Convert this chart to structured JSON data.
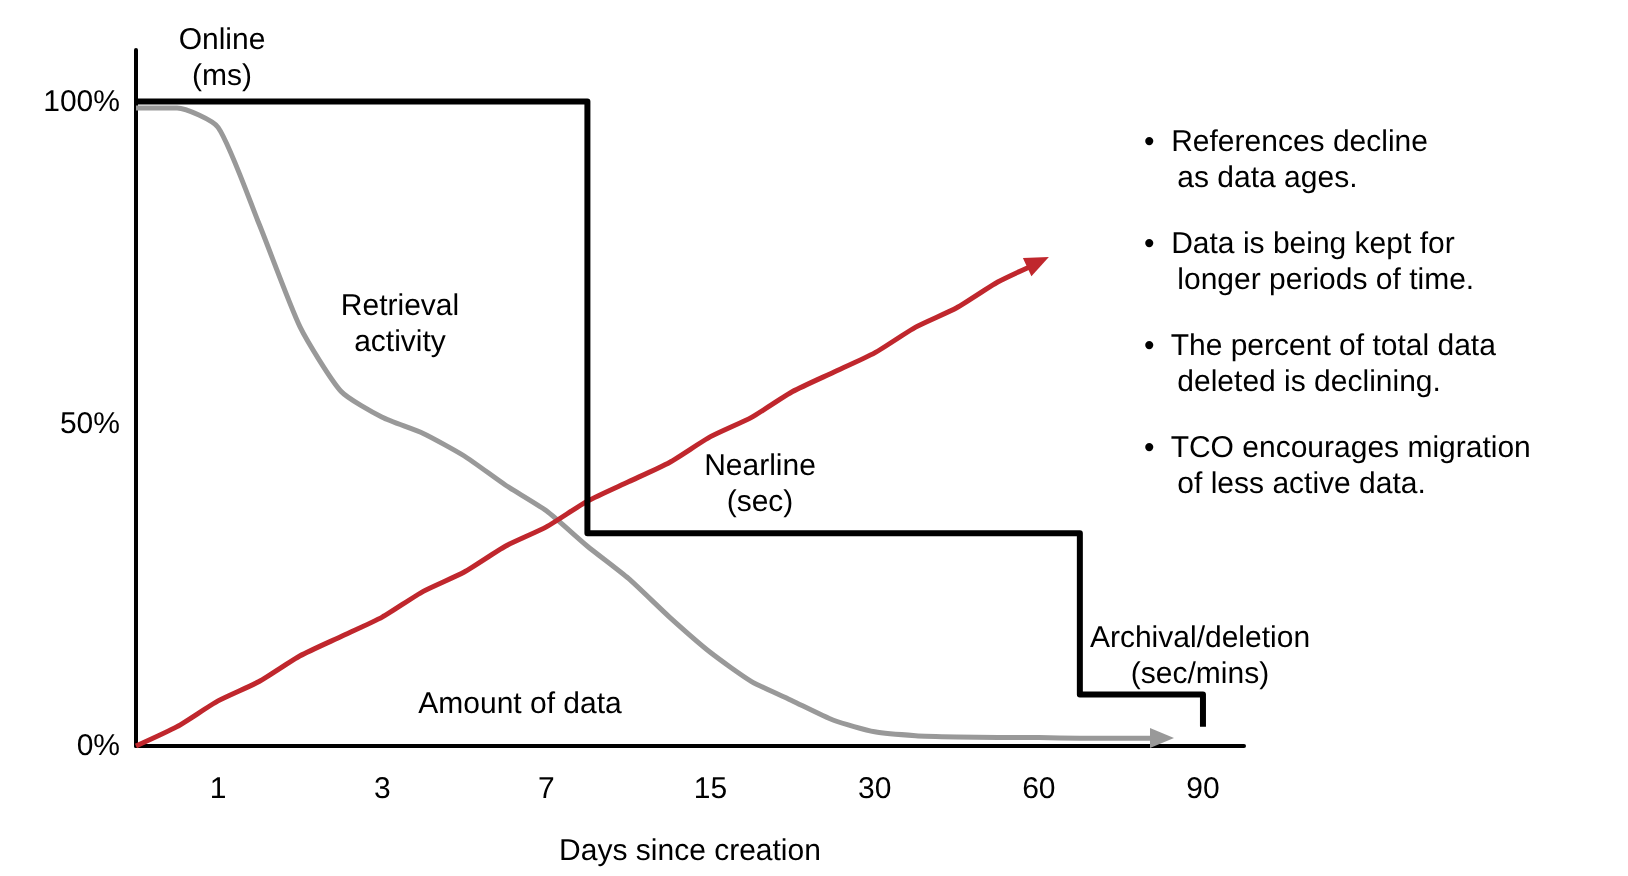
{
  "chart_data": {
    "type": "line",
    "xlabel": "Days since creation",
    "categories": [
      null,
      null,
      "1",
      null,
      null,
      null,
      "3",
      null,
      null,
      null,
      "7",
      null,
      null,
      null,
      "15",
      null,
      null,
      null,
      "30",
      null,
      null,
      null,
      "60",
      null,
      null,
      null,
      "90",
      null
    ],
    "ylim": [
      0,
      108
    ],
    "yticks": [
      {
        "value": 0,
        "label": "0%"
      },
      {
        "value": 50,
        "label": "50%"
      },
      {
        "value": 100,
        "label": "100%"
      }
    ],
    "grid": false,
    "marker": "none",
    "line_style": "solid",
    "series": [
      {
        "color": "#999999",
        "values": [
          99,
          99,
          96,
          81,
          65,
          55,
          51,
          48.5,
          45,
          40.5,
          36.5,
          31,
          26,
          20,
          14.5,
          10,
          7,
          4,
          2.2,
          1.6,
          1.4,
          1.3,
          1.3,
          1.2,
          1.2,
          1.2,
          null,
          null
        ]
      },
      {
        "color": "#c0272d",
        "values": [
          0,
          3,
          7,
          10,
          14,
          17,
          20,
          24,
          27,
          31,
          34,
          38,
          41,
          44,
          48,
          51,
          55,
          58,
          61,
          65,
          68,
          72,
          75,
          null,
          null,
          null,
          null,
          null
        ]
      },
      {
        "type": "step",
        "color": "#000000",
        "values": [
          100,
          100,
          100,
          100,
          100,
          100,
          100,
          100,
          100,
          100,
          100,
          33,
          33,
          33,
          33,
          33,
          33,
          33,
          33,
          33,
          33,
          33,
          33,
          8,
          8,
          8,
          3,
          null
        ]
      }
    ],
    "annotations": [
      "Online\n(ms)",
      "Retrieval\nactivity",
      "Nearline\n(sec)",
      "Archival/deletion\n(sec/mins)",
      "Amount of data",
      "•  References decline\n    as data ages.",
      "•  Data is being kept for\n    longer periods of time.",
      "•  The percent of total data\n    deleted is declining.",
      "•  TCO encourages migration\n    of less active data."
    ]
  }
}
